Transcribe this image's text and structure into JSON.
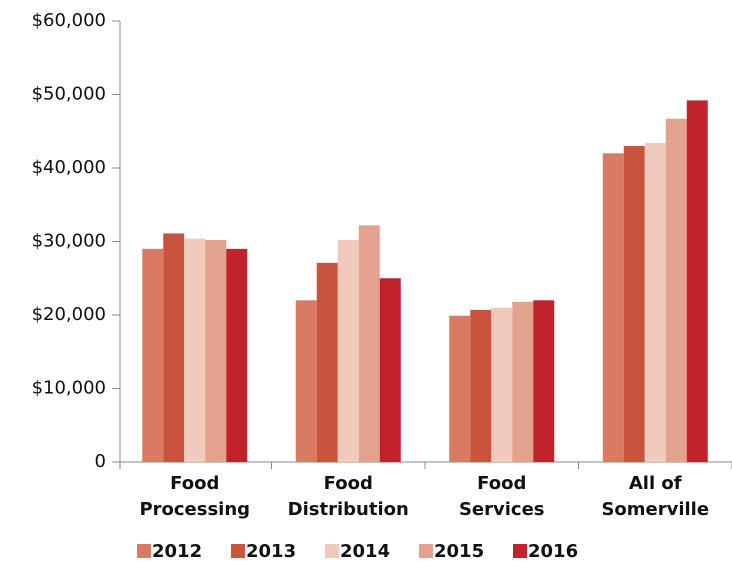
{
  "chart_data": {
    "type": "bar",
    "categories": [
      "Food\nProcessing",
      "Food\nDistribution",
      "Food\nServices",
      "All of\nSomerville"
    ],
    "series": [
      {
        "name": "2012",
        "color": "#d97a62",
        "values": [
          29000,
          22000,
          19900,
          42000
        ]
      },
      {
        "name": "2013",
        "color": "#c9533d",
        "values": [
          31100,
          27100,
          20700,
          43000
        ]
      },
      {
        "name": "2014",
        "color": "#f0cbbd",
        "values": [
          30400,
          30200,
          21000,
          43400
        ]
      },
      {
        "name": "2015",
        "color": "#e3a28e",
        "values": [
          30200,
          32200,
          21800,
          46700
        ]
      },
      {
        "name": "2016",
        "color": "#c1222b",
        "values": [
          29000,
          25000,
          22000,
          49200
        ]
      }
    ],
    "ylim": [
      0,
      60000
    ],
    "yticks": [
      0,
      {
        "value": 10000,
        "label": "$10,000"
      },
      {
        "value": 20000,
        "label": "$20,000"
      },
      {
        "value": 30000,
        "label": "$30,000"
      },
      {
        "value": 40000,
        "label": "$40,000"
      },
      {
        "value": 50000,
        "label": "$50,000"
      },
      {
        "value": 60000,
        "label": "$60,000"
      }
    ],
    "legend": "bottom"
  }
}
